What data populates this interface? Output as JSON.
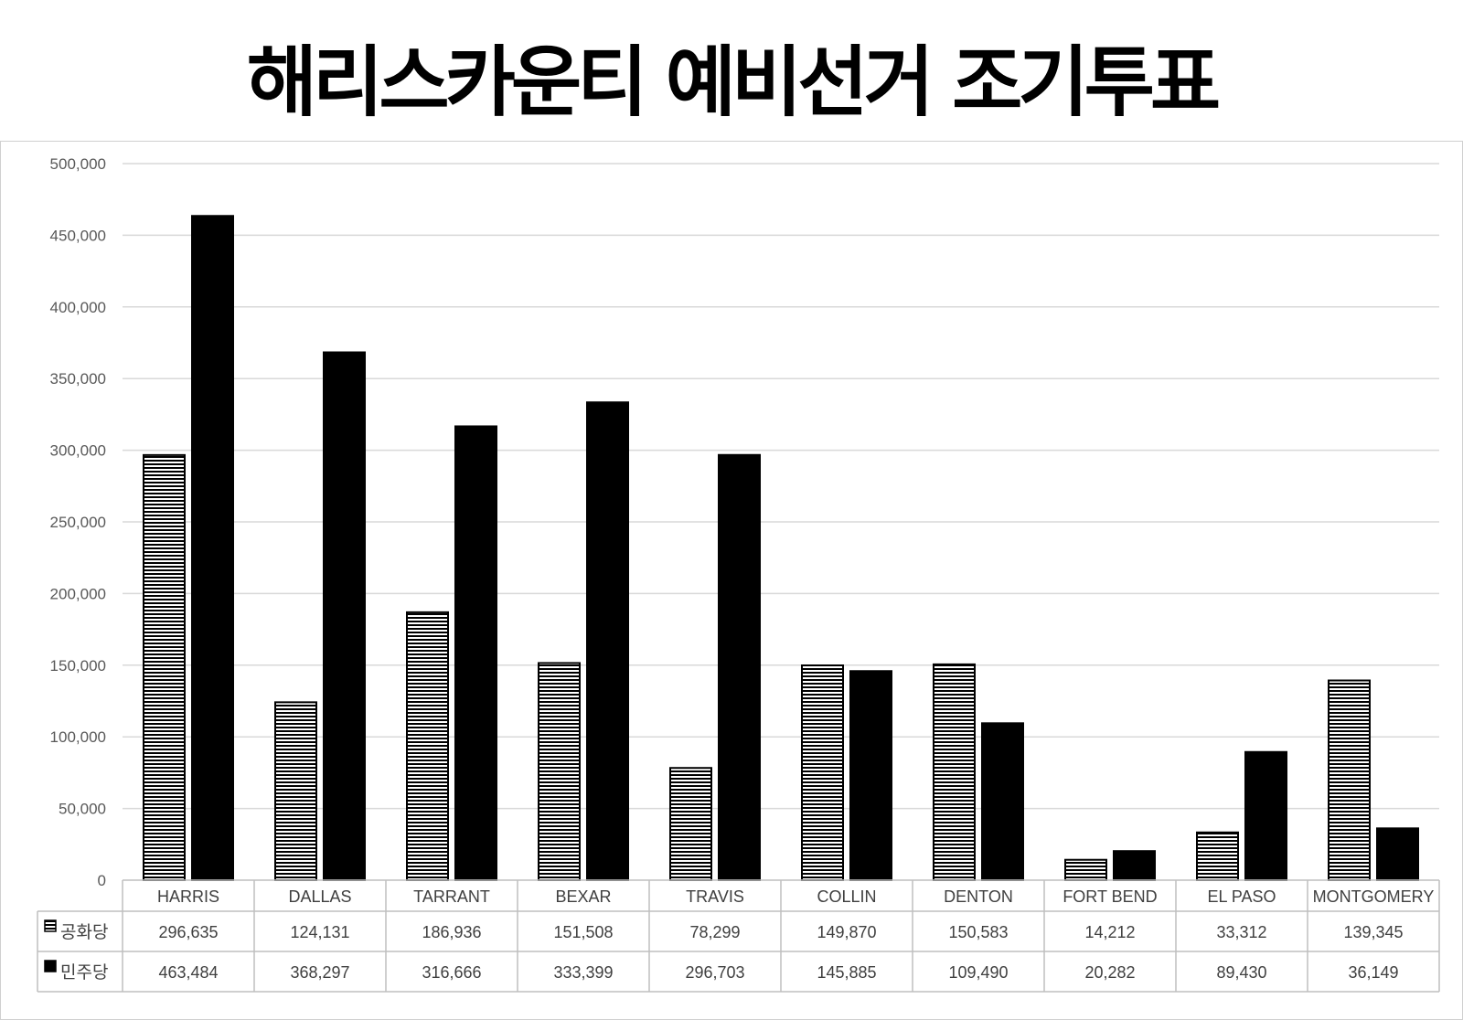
{
  "title": "해리스카운티 예비선거 조기투표",
  "chart_data": {
    "type": "bar",
    "title": "해리스카운티 예비선거 조기투표",
    "categories": [
      "HARRIS",
      "DALLAS",
      "TARRANT",
      "BEXAR",
      "TRAVIS",
      "COLLIN",
      "DENTON",
      "FORT BEND",
      "EL PASO",
      "MONTGOMERY"
    ],
    "series": [
      {
        "name": "공화당",
        "values": [
          296635,
          124131,
          186936,
          151508,
          78299,
          149870,
          150583,
          14212,
          33312,
          139345
        ],
        "labels": [
          "296,635",
          "124,131",
          "186,936",
          "151,508",
          "78,299",
          "149,870",
          "150,583",
          "14,212",
          "33,312",
          "139,345"
        ],
        "pattern": "horizontal-stripes"
      },
      {
        "name": "민주당",
        "values": [
          463484,
          368297,
          316666,
          333399,
          296703,
          145885,
          109490,
          20282,
          89430,
          36149
        ],
        "labels": [
          "463,484",
          "368,297",
          "316,666",
          "333,399",
          "296,703",
          "145,885",
          "109,490",
          "20,282",
          "89,430",
          "36,149"
        ],
        "pattern": "solid-black"
      }
    ],
    "yticks": [
      "0",
      "50,000",
      "100,000",
      "150,000",
      "200,000",
      "250,000",
      "300,000",
      "350,000",
      "400,000",
      "450,000",
      "500,000"
    ],
    "ylim": [
      0,
      500000
    ],
    "grid": true,
    "legend": "data-table-below"
  }
}
